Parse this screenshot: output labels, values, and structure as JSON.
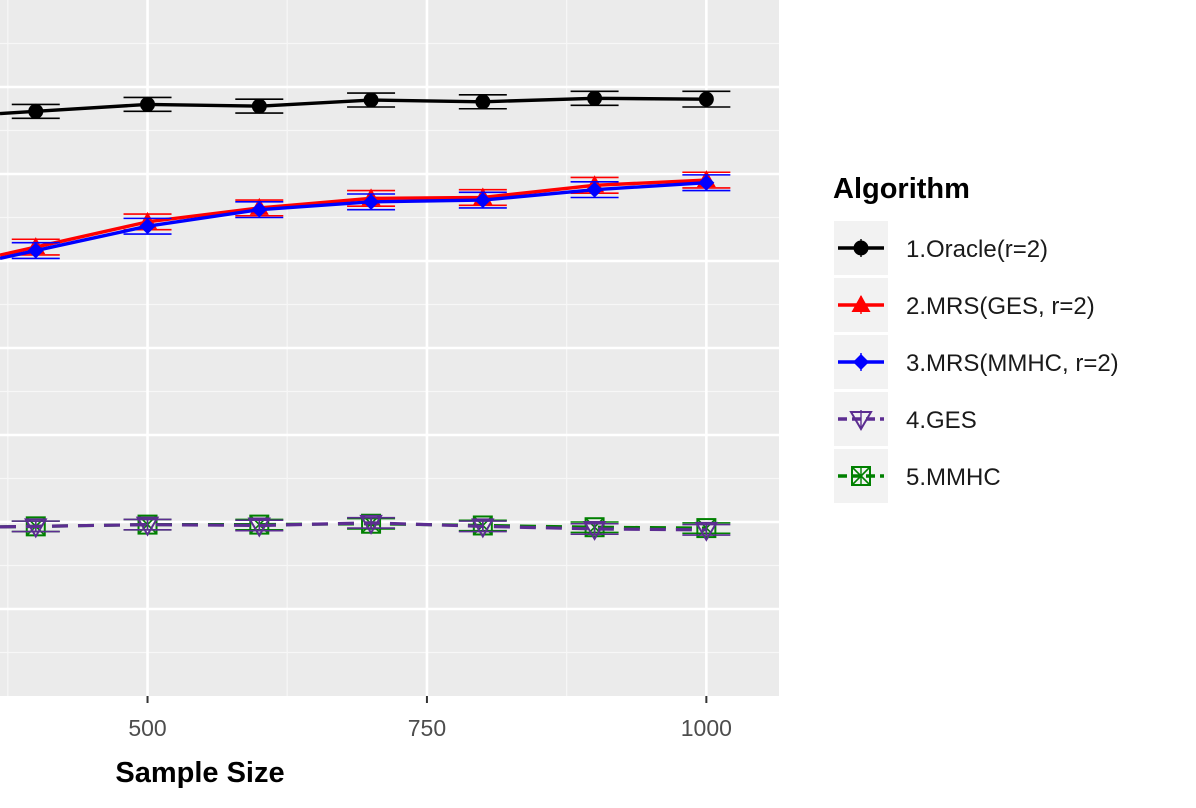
{
  "chart_data": {
    "type": "line",
    "xlabel": "Sample Size",
    "ylabel": "",
    "x_ticks": [
      500,
      750,
      1000
    ],
    "xlim": [
      368,
      1065
    ],
    "ylim": [
      0,
      800
    ],
    "grid": true,
    "legend_title": "Algorithm",
    "legend_position": "right",
    "x": [
      400,
      500,
      600,
      700,
      800,
      900,
      1000
    ],
    "series": [
      {
        "name": "1.Oracle(r=2)",
        "color": "#000000",
        "marker": "filled-circle",
        "line": "solid",
        "values": [
          672,
          680,
          678,
          685,
          683,
          687,
          686
        ],
        "error": [
          8,
          8,
          8,
          8,
          8,
          8,
          9
        ]
      },
      {
        "name": "2.MRS(GES, r=2)",
        "color": "#ff0000",
        "marker": "filled-triangle",
        "line": "solid",
        "values": [
          516,
          545,
          561,
          572,
          573,
          587,
          593
        ],
        "error": [
          9,
          9,
          9,
          9,
          9,
          9,
          9
        ]
      },
      {
        "name": "3.MRS(MMHC, r=2)",
        "color": "#0000ff",
        "marker": "filled-diamond",
        "line": "solid",
        "values": [
          512,
          540,
          559,
          568,
          570,
          582,
          590
        ],
        "error": [
          9,
          9,
          9,
          9,
          9,
          9,
          9
        ]
      },
      {
        "name": "4.GES",
        "color": "#5c2d91",
        "marker": "open-triangle-down",
        "line": "dashed",
        "values": [
          195,
          197,
          196,
          199,
          195,
          192,
          191
        ],
        "error": [
          6,
          6,
          6,
          6,
          6,
          6,
          6
        ]
      },
      {
        "name": "5.MMHC",
        "color": "#008000",
        "marker": "open-square-cross",
        "line": "dashed",
        "values": [
          195,
          197,
          197,
          198,
          196,
          194,
          193
        ],
        "error": [
          6,
          6,
          6,
          6,
          6,
          6,
          6
        ]
      }
    ]
  }
}
